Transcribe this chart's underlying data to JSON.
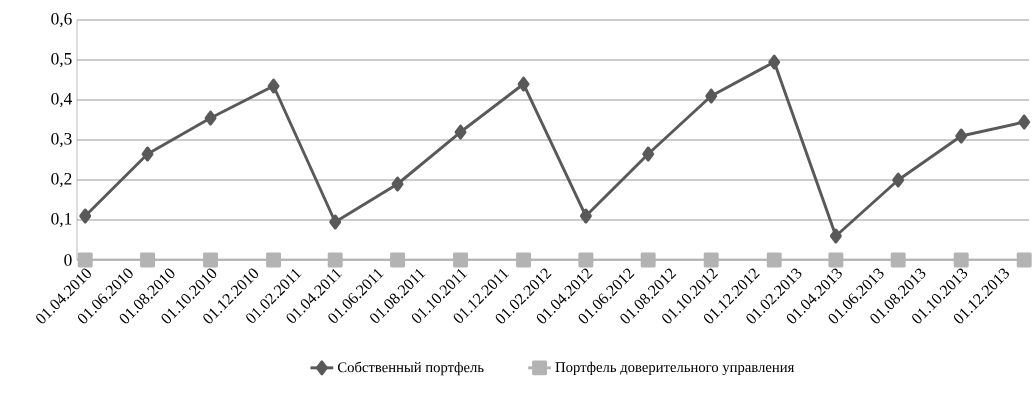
{
  "chart_data": {
    "type": "line",
    "x": [
      "2010-04-01",
      "2010-07-01",
      "2010-10-01",
      "2011-01-01",
      "2011-04-01",
      "2011-07-01",
      "2011-10-01",
      "2012-01-01",
      "2012-04-01",
      "2012-07-01",
      "2012-10-01",
      "2013-01-01",
      "2013-04-01",
      "2013-07-01",
      "2013-10-01",
      "2014-01-01"
    ],
    "series": [
      {
        "name": "Собственный портфель",
        "color": "#595959",
        "marker": "diamond",
        "values": [
          0.11,
          0.265,
          0.355,
          0.435,
          0.095,
          0.19,
          0.32,
          0.44,
          0.11,
          0.265,
          0.41,
          0.495,
          0.06,
          0.2,
          0.31,
          0.345
        ]
      },
      {
        "name": "Портфель доверительного управления",
        "color": "#b3b3b3",
        "marker": "square",
        "values": [
          0,
          0,
          0,
          0,
          0,
          0,
          0,
          0,
          0,
          0,
          0,
          0,
          0,
          0,
          0,
          0
        ]
      }
    ],
    "xlim": [
      "2010-03-20",
      "2014-01-08"
    ],
    "xticks": [
      {
        "value": "2010-04-01",
        "label": "01.04.2010"
      },
      {
        "value": "2010-06-01",
        "label": "01.06.2010"
      },
      {
        "value": "2010-08-01",
        "label": "01.08.2010"
      },
      {
        "value": "2010-10-01",
        "label": "01.10.2010"
      },
      {
        "value": "2010-12-01",
        "label": "01.12.2010"
      },
      {
        "value": "2011-02-01",
        "label": "01.02.2011"
      },
      {
        "value": "2011-04-01",
        "label": "01.04.2011"
      },
      {
        "value": "2011-06-01",
        "label": "01.06.2011"
      },
      {
        "value": "2011-08-01",
        "label": "01.08.2011"
      },
      {
        "value": "2011-10-01",
        "label": "01.10.2011"
      },
      {
        "value": "2011-12-01",
        "label": "01.12.2011"
      },
      {
        "value": "2012-02-01",
        "label": "01.02.2012"
      },
      {
        "value": "2012-04-01",
        "label": "01.04.2012"
      },
      {
        "value": "2012-06-01",
        "label": "01.06.2012"
      },
      {
        "value": "2012-08-01",
        "label": "01.08.2012"
      },
      {
        "value": "2012-10-01",
        "label": "01.10.2012"
      },
      {
        "value": "2012-12-01",
        "label": "01.12.2012"
      },
      {
        "value": "2013-02-01",
        "label": "01.02.2013"
      },
      {
        "value": "2013-04-01",
        "label": "01.04.2013"
      },
      {
        "value": "2013-06-01",
        "label": "01.06.2013"
      },
      {
        "value": "2013-08-01",
        "label": "01.08.2013"
      },
      {
        "value": "2013-10-01",
        "label": "01.10.2013"
      },
      {
        "value": "2013-12-01",
        "label": "01.12.2013"
      }
    ],
    "ylim": [
      0,
      0.6
    ],
    "yticks": [
      0,
      {
        "value": 0.1,
        "label": "0,1"
      },
      {
        "value": 0.2,
        "label": "0,2"
      },
      {
        "value": 0.3,
        "label": "0,3"
      },
      {
        "value": 0.4,
        "label": "0,4"
      },
      {
        "value": 0.5,
        "label": "0,5"
      },
      {
        "value": 0.6,
        "label": "0,6"
      }
    ],
    "grid": "y",
    "legend": "bottom",
    "line_style": "solid"
  }
}
